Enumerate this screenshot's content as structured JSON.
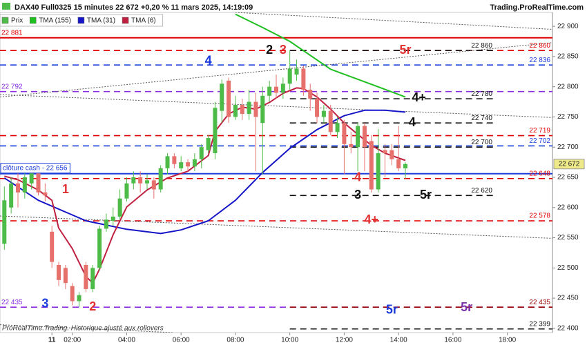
{
  "chart_data": {
    "type": "candlestick",
    "title": "DAX40 Full0325 15 minutes 22 672 +0,20 % 11 mars 2025, 14:19:09",
    "source": "Trading.ProRealTime.com",
    "footnote": "ProRealTime.Trading. Historique ajusté aux rollovers",
    "xlim": [
      -0.66,
      19.66
    ],
    "ylim": [
      22393,
      22923
    ],
    "xticks": [
      {
        "value": 1.25,
        "label": "11"
      },
      {
        "value": 2,
        "label": "02:00"
      },
      {
        "value": 4,
        "label": "04:00"
      },
      {
        "value": 6,
        "label": "06:00"
      },
      {
        "value": 8,
        "label": "08:00"
      },
      {
        "value": 10,
        "label": "10:00"
      },
      {
        "value": 12,
        "label": "12:00"
      },
      {
        "value": 14,
        "label": "14:00"
      },
      {
        "value": 16,
        "label": "16:00"
      },
      {
        "value": 18,
        "label": "18:00"
      }
    ],
    "yticks": [
      {
        "value": 22400,
        "label": "22 400"
      },
      {
        "value": 22450,
        "label": "22 450"
      },
      {
        "value": 22500,
        "label": "22 500"
      },
      {
        "value": 22550,
        "label": "22 550"
      },
      {
        "value": 22600,
        "label": "22 600"
      },
      {
        "value": 22650,
        "label": "22 650"
      },
      {
        "value": 22700,
        "label": "22 700"
      },
      {
        "value": 22750,
        "label": "22 750"
      },
      {
        "value": 22800,
        "label": "22 800"
      },
      {
        "value": 22850,
        "label": "22 850"
      },
      {
        "value": 22900,
        "label": "22 900"
      }
    ],
    "series": [
      {
        "name": "Prix",
        "type": "candlestick",
        "up_color": "#4cbb47",
        "down_color": "#e6716c",
        "x": [
          -0.5,
          -0.25,
          0,
          0.25,
          0.5,
          0.75,
          1,
          1.25,
          1.5,
          1.75,
          2,
          2.25,
          2.5,
          2.75,
          3,
          3.25,
          3.5,
          3.75,
          4,
          4.25,
          4.5,
          4.75,
          5,
          5.25,
          5.5,
          5.75,
          6,
          6.25,
          6.5,
          6.75,
          7,
          7.25,
          7.5,
          7.75,
          8,
          8.25,
          8.5,
          8.75,
          9,
          9.25,
          9.5,
          9.75,
          10,
          10.25,
          10.5,
          10.75,
          11,
          11.25,
          11.5,
          11.75,
          12,
          12.25,
          12.5,
          12.75,
          13,
          13.25,
          13.5,
          13.75,
          14,
          14.25
        ],
        "open": [
          22540,
          22600,
          22640,
          22625,
          22640,
          22660,
          22625,
          22560,
          22505,
          22500,
          22470,
          22445,
          22505,
          22465,
          22500,
          22565,
          22578,
          22585,
          22615,
          22640,
          22650,
          22640,
          22645,
          22630,
          22665,
          22685,
          22665,
          22675,
          22668,
          22680,
          22695,
          22690,
          22760,
          22810,
          22750,
          22770,
          22755,
          22775,
          22740,
          22785,
          22800,
          22790,
          22805,
          22820,
          22830,
          22795,
          22780,
          22750,
          22760,
          22725,
          22740,
          22705,
          22700,
          22735,
          22710,
          22630,
          22695,
          22695,
          22680,
          22665
        ],
        "high": [
          22635,
          22650,
          22660,
          22660,
          22665,
          22665,
          22640,
          22570,
          22510,
          22505,
          22475,
          22460,
          22510,
          22505,
          22570,
          22590,
          22600,
          22630,
          22650,
          22660,
          22660,
          22655,
          22650,
          22670,
          22690,
          22690,
          22685,
          22680,
          22690,
          22705,
          22720,
          22775,
          22812,
          22815,
          22785,
          22780,
          22795,
          22790,
          22800,
          22810,
          22820,
          22815,
          22860,
          22845,
          22835,
          22805,
          22790,
          22770,
          22770,
          22750,
          22745,
          22725,
          22740,
          22740,
          22720,
          22730,
          22705,
          22705,
          22735,
          22675
        ],
        "low": [
          22530,
          22590,
          22600,
          22615,
          22630,
          22620,
          22610,
          22500,
          22470,
          22465,
          22438,
          22435,
          22460,
          22460,
          22495,
          22560,
          22570,
          22580,
          22610,
          22630,
          22625,
          22630,
          22615,
          22625,
          22655,
          22665,
          22660,
          22660,
          22660,
          22665,
          22690,
          22680,
          22740,
          22740,
          22745,
          22745,
          22745,
          22660,
          22655,
          22775,
          22780,
          22780,
          22795,
          22810,
          22785,
          22760,
          22740,
          22740,
          22720,
          22715,
          22655,
          22690,
          22660,
          22660,
          22625,
          22625,
          22650,
          22670,
          22660,
          22648
        ],
        "close": [
          22612,
          22640,
          22625,
          22650,
          22660,
          22625,
          22620,
          22510,
          22480,
          22475,
          22445,
          22455,
          22465,
          22500,
          22565,
          22580,
          22585,
          22615,
          22640,
          22650,
          22640,
          22645,
          22630,
          22665,
          22685,
          22672,
          22675,
          22668,
          22680,
          22700,
          22715,
          22765,
          22805,
          22750,
          22770,
          22755,
          22775,
          22750,
          22785,
          22800,
          22790,
          22805,
          22830,
          22830,
          22795,
          22780,
          22750,
          22760,
          22725,
          22740,
          22705,
          22700,
          22735,
          22700,
          22630,
          22690,
          22690,
          22680,
          22665,
          22672
        ]
      },
      {
        "name": "TMA (155)",
        "type": "line",
        "color": "#1fbf1f",
        "x": [
          8,
          9,
          10,
          11.5,
          13,
          14.25
        ],
        "values": [
          22920,
          22898,
          22875,
          22829,
          22804,
          22783
        ]
      },
      {
        "name": "TMA (31)",
        "type": "line",
        "color": "#1616c8",
        "x": [
          -0.5,
          0.75,
          2.5,
          4,
          5.25,
          6,
          7,
          8,
          9,
          10,
          11,
          12,
          12.75,
          13.5,
          14.25
        ],
        "values": [
          22649,
          22612,
          22578,
          22564,
          22557,
          22563,
          22578,
          22612,
          22658,
          22698,
          22729,
          22752,
          22761,
          22761,
          22758
        ]
      },
      {
        "name": "TMA (6)",
        "type": "line",
        "color": "#c02040",
        "x": [
          -0.5,
          0,
          0.75,
          1.25,
          1.5,
          2,
          2.5,
          2.75,
          3,
          3.5,
          4,
          4.75,
          5.5,
          6.25,
          7,
          7.25,
          7.75,
          8.25,
          8.75,
          9.25,
          9.75,
          10.25,
          10.5,
          11,
          11.5,
          12,
          12.5,
          13,
          13.5,
          14.25
        ],
        "values": [
          22652,
          22646,
          22629,
          22612,
          22566,
          22532,
          22486,
          22475,
          22498,
          22555,
          22601,
          22629,
          22649,
          22660,
          22686,
          22726,
          22755,
          22766,
          22763,
          22774,
          22789,
          22798,
          22797,
          22783,
          22763,
          22740,
          22721,
          22703,
          22690,
          22678
        ]
      }
    ],
    "last_price": {
      "value": 22672,
      "label": "22 672",
      "color": "#eeea8a"
    },
    "levels": [
      {
        "value": 22881,
        "label": "22 881",
        "color": "#e00000",
        "style": "solid",
        "label_pos": "left"
      },
      {
        "value": 22860,
        "label": "22 860",
        "color": "#e00000",
        "style": "dashed",
        "label_pos": "right"
      },
      {
        "value": 22860,
        "label": "22 860",
        "color": "#111111",
        "style": "dashed",
        "x_start": 10,
        "x_end": 17.5,
        "label_pos": "end"
      },
      {
        "value": 22836,
        "label": "22 836",
        "color": "#1a3cdc",
        "style": "dashed",
        "label_pos": "right"
      },
      {
        "value": 22792,
        "label": "22 792",
        "color": "#8a2be2",
        "style": "dashed",
        "label_pos": "left"
      },
      {
        "value": 22780,
        "label": "22 780",
        "color": "#111111",
        "style": "dashed",
        "x_start": 10,
        "x_end": 17.5,
        "label_pos": "end"
      },
      {
        "value": 22740,
        "label": "22 740",
        "color": "#111111",
        "style": "dashed",
        "x_start": 10,
        "x_end": 17.5,
        "label_pos": "end"
      },
      {
        "value": 22719,
        "label": "22 719",
        "color": "#e00000",
        "style": "dashed",
        "label_pos": "right"
      },
      {
        "value": 22702,
        "label": "22 702",
        "color": "#1a3cdc",
        "style": "dashed",
        "label_pos": "right"
      },
      {
        "value": 22700,
        "label": "22 700",
        "color": "#111111",
        "style": "dashed",
        "x_start": 10,
        "x_end": 17.5,
        "label_pos": "end"
      },
      {
        "value": 22656,
        "label": "clôture cash - 22 656",
        "color": "#1a3cdc",
        "style": "solid",
        "label_pos": "box"
      },
      {
        "value": 22648,
        "label": "22 648",
        "color": "#e00000",
        "style": "dashed",
        "label_pos": "right"
      },
      {
        "value": 22620,
        "label": "22 620",
        "color": "#111111",
        "style": "dashed",
        "x_start": 10,
        "x_end": 17.5,
        "label_pos": "end"
      },
      {
        "value": 22578,
        "label": "22 578",
        "color": "#e00000",
        "style": "dashed",
        "label_pos": "right"
      },
      {
        "value": 22435,
        "label": "22 435",
        "color": "#8a2be2",
        "style": "dashed",
        "label_pos": "left"
      },
      {
        "value": 22435,
        "label": "22 435",
        "color": "#990000",
        "style": "dashed",
        "x_start": 10,
        "label_pos": "right"
      },
      {
        "value": 22399,
        "label": "22 399",
        "color": "#111111",
        "style": "dashed",
        "x_start": 10,
        "label_pos": "right"
      }
    ],
    "trendlines": [
      {
        "x": [
          8,
          19.66
        ],
        "values": [
          22923,
          22895
        ]
      },
      {
        "x": [
          -0.66,
          19.66
        ],
        "values": [
          22783,
          22873
        ]
      },
      {
        "x": [
          -0.66,
          19.66
        ],
        "values": [
          22787,
          22749
        ]
      },
      {
        "x": [
          -0.66,
          19.66
        ],
        "values": [
          22586,
          22549
        ]
      },
      {
        "x": [
          -0.66,
          5.7
        ],
        "values": [
          22406,
          22393
        ]
      }
    ],
    "annotations": [
      {
        "text": "1",
        "x": 1.75,
        "y": 22629,
        "color": "#e03030"
      },
      {
        "text": "2",
        "x": 2.75,
        "y": 22435,
        "color": "#e03030"
      },
      {
        "text": "3",
        "x": 1,
        "y": 22440,
        "color": "#1a3cdc"
      },
      {
        "text": "2",
        "x": 9.25,
        "y": 22860,
        "color": "#111111"
      },
      {
        "text": "3",
        "x": 9.75,
        "y": 22860,
        "color": "#e03030"
      },
      {
        "text": "5r",
        "x": 14.25,
        "y": 22860,
        "color": "#e03030"
      },
      {
        "text": "4",
        "x": 7,
        "y": 22842,
        "color": "#1a3cdc"
      },
      {
        "text": "4+",
        "x": 14.75,
        "y": 22781,
        "color": "#111111"
      },
      {
        "text": "4",
        "x": 14.5,
        "y": 22740,
        "color": "#111111"
      },
      {
        "text": "4",
        "x": 12.5,
        "y": 22649,
        "color": "#e03030"
      },
      {
        "text": "3",
        "x": 12.5,
        "y": 22620,
        "color": "#111111"
      },
      {
        "text": "5r",
        "x": 15,
        "y": 22620,
        "color": "#111111"
      },
      {
        "text": "4+",
        "x": 13,
        "y": 22579,
        "color": "#e03030"
      },
      {
        "text": "5r",
        "x": 13.75,
        "y": 22430,
        "color": "#1a3cdc"
      },
      {
        "text": "5r",
        "x": 16.5,
        "y": 22434,
        "color": "#7b2fa8"
      }
    ]
  }
}
